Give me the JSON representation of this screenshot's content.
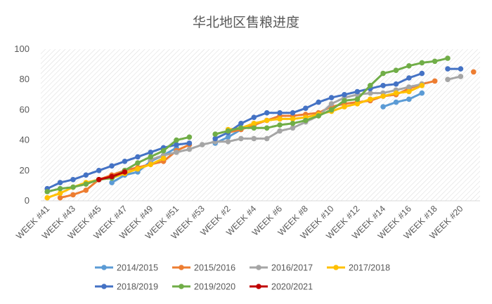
{
  "chart_data": {
    "type": "line",
    "title": "华北地区售粮进度",
    "xlabel": "",
    "ylabel": "",
    "ylim": [
      0,
      100
    ],
    "yticks": [
      0,
      20,
      40,
      60,
      80,
      100
    ],
    "grid": "diagonal hatch plot area",
    "legend_position": "bottom",
    "categories": [
      "WEEK #41",
      "WEEK #42",
      "WEEK #43",
      "WEEK #44",
      "WEEK #45",
      "WEEK #46",
      "WEEK #47",
      "WEEK #48",
      "WEEK #49",
      "WEEK #50",
      "WEEK #51",
      "WEEK #52",
      "WEEK #53",
      "WEEK #1",
      "WEEK #2",
      "WEEK #3",
      "WEEK #4",
      "WEEK #5",
      "WEEK #6",
      "WEEK #7",
      "WEEK #8",
      "WEEK #9",
      "WEEK #10",
      "WEEK #11",
      "WEEK #12",
      "WEEK #13",
      "WEEK #14",
      "WEEK #15",
      "WEEK #16",
      "WEEK #17",
      "WEEK #18",
      "WEEK #19",
      "WEEK #20",
      "WEEK #21"
    ],
    "shown_tick_labels": [
      "WEEK #41",
      "WEEK #43",
      "WEEK #45",
      "WEEK #47",
      "WEEK #49",
      "WEEK #51",
      "WEEK #53",
      "WEEK #2",
      "WEEK #4",
      "WEEK #6",
      "WEEK #8",
      "WEEK #10",
      "WEEK #12",
      "WEEK #14",
      "WEEK #16",
      "WEEK #18",
      "WEEK #20"
    ],
    "series": [
      {
        "name": "2014/2015",
        "color": "#5B9BD5",
        "values": [
          null,
          null,
          null,
          null,
          null,
          12,
          17,
          19,
          26,
          30,
          35,
          null,
          null,
          38,
          42,
          47,
          50,
          null,
          null,
          null,
          null,
          null,
          null,
          null,
          null,
          null,
          62,
          65,
          67,
          71,
          null,
          null,
          null,
          null
        ]
      },
      {
        "name": "2015/2016",
        "color": "#ED7D31",
        "values": [
          null,
          2,
          4,
          7,
          14,
          17,
          20,
          22,
          24,
          26,
          33,
          37,
          null,
          null,
          45,
          47,
          50,
          53,
          56,
          56,
          57,
          58,
          62,
          64,
          65,
          66,
          69,
          70,
          74,
          77,
          79,
          null,
          null,
          85
        ]
      },
      {
        "name": "2016/2017",
        "color": "#A5A5A5",
        "values": [
          null,
          null,
          null,
          null,
          null,
          null,
          null,
          null,
          27,
          30,
          32,
          34,
          37,
          39,
          39,
          41,
          41,
          41,
          46,
          48,
          52,
          56,
          64,
          68,
          70,
          71,
          71,
          73,
          75,
          77,
          null,
          80,
          82,
          null
        ]
      },
      {
        "name": "2017/2018",
        "color": "#FFC000",
        "values": [
          2,
          5,
          9,
          12,
          14,
          15,
          18,
          21,
          24,
          28,
          null,
          null,
          null,
          null,
          47,
          48,
          51,
          53,
          54,
          54,
          55,
          57,
          59,
          62,
          64,
          67,
          69,
          71,
          72,
          76,
          null,
          null,
          null,
          null
        ]
      },
      {
        "name": "2018/2019",
        "color": "#4472C4",
        "values": [
          8,
          12,
          14,
          17,
          20,
          23,
          26,
          29,
          32,
          35,
          37,
          38,
          null,
          41,
          45,
          51,
          55,
          58,
          58,
          58,
          61,
          65,
          68,
          70,
          72,
          74,
          76,
          77,
          81,
          84,
          null,
          87,
          87,
          null
        ]
      },
      {
        "name": "2019/2020",
        "color": "#70AD47",
        "values": [
          6,
          8,
          9,
          11,
          14,
          15,
          20,
          25,
          29,
          33,
          40,
          42,
          null,
          44,
          46,
          48,
          48,
          48,
          50,
          51,
          53,
          56,
          60,
          66,
          67,
          76,
          84,
          86,
          89,
          91,
          92,
          94,
          null,
          null
        ]
      },
      {
        "name": "2020/2021",
        "color": "#C00000",
        "values": [
          null,
          null,
          null,
          null,
          14,
          16,
          19,
          null,
          null,
          null,
          null,
          null,
          null,
          null,
          null,
          null,
          null,
          null,
          null,
          null,
          null,
          null,
          null,
          null,
          null,
          null,
          null,
          null,
          null,
          null,
          null,
          null,
          null,
          null
        ]
      }
    ]
  }
}
